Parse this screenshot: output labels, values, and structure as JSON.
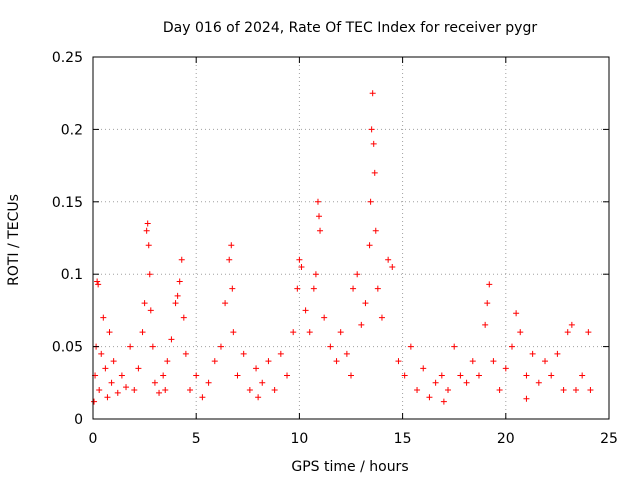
{
  "chart_data": {
    "type": "scatter",
    "title": "Day 016 of 2024, Rate Of TEC Index for receiver pygr",
    "xlabel": "GPS time / hours",
    "ylabel": "ROTI / TECUs",
    "xlim": [
      0,
      25
    ],
    "ylim": [
      0,
      0.25
    ],
    "xticks": [
      0,
      5,
      10,
      15,
      20,
      25
    ],
    "xtick_labels": [
      "0",
      "5",
      "10",
      "15",
      "20",
      "25"
    ],
    "yticks": [
      0,
      0.05,
      0.1,
      0.15,
      0.2,
      0.25
    ],
    "ytick_labels": [
      "0",
      "0.05",
      "0.1",
      "0.15",
      "0.2",
      "0.25"
    ],
    "grid": true,
    "marker": "+",
    "color": "#ff0000",
    "series": [
      {
        "name": "ROTI",
        "points": [
          [
            0.05,
            0.012
          ],
          [
            0.1,
            0.03
          ],
          [
            0.15,
            0.05
          ],
          [
            0.2,
            0.095
          ],
          [
            0.25,
            0.093
          ],
          [
            0.3,
            0.02
          ],
          [
            0.4,
            0.045
          ],
          [
            0.5,
            0.07
          ],
          [
            0.6,
            0.035
          ],
          [
            0.7,
            0.015
          ],
          [
            0.8,
            0.06
          ],
          [
            0.9,
            0.025
          ],
          [
            1.0,
            0.04
          ],
          [
            1.2,
            0.018
          ],
          [
            1.4,
            0.03
          ],
          [
            1.6,
            0.022
          ],
          [
            1.8,
            0.05
          ],
          [
            2.0,
            0.02
          ],
          [
            2.2,
            0.035
          ],
          [
            2.4,
            0.06
          ],
          [
            2.5,
            0.08
          ],
          [
            2.6,
            0.13
          ],
          [
            2.65,
            0.135
          ],
          [
            2.7,
            0.12
          ],
          [
            2.75,
            0.1
          ],
          [
            2.8,
            0.075
          ],
          [
            2.9,
            0.05
          ],
          [
            3.0,
            0.025
          ],
          [
            3.2,
            0.018
          ],
          [
            3.4,
            0.03
          ],
          [
            3.6,
            0.04
          ],
          [
            3.8,
            0.055
          ],
          [
            4.0,
            0.08
          ],
          [
            4.1,
            0.085
          ],
          [
            4.2,
            0.095
          ],
          [
            4.3,
            0.11
          ],
          [
            4.4,
            0.07
          ],
          [
            4.5,
            0.045
          ],
          [
            4.7,
            0.02
          ],
          [
            5.0,
            0.03
          ],
          [
            5.3,
            0.015
          ],
          [
            5.6,
            0.025
          ],
          [
            5.9,
            0.04
          ],
          [
            6.2,
            0.05
          ],
          [
            6.4,
            0.08
          ],
          [
            6.6,
            0.11
          ],
          [
            6.7,
            0.12
          ],
          [
            6.75,
            0.09
          ],
          [
            6.8,
            0.06
          ],
          [
            7.0,
            0.03
          ],
          [
            7.3,
            0.045
          ],
          [
            7.6,
            0.02
          ],
          [
            7.9,
            0.035
          ],
          [
            8.2,
            0.025
          ],
          [
            8.5,
            0.04
          ],
          [
            8.8,
            0.02
          ],
          [
            9.1,
            0.045
          ],
          [
            9.4,
            0.03
          ],
          [
            9.7,
            0.06
          ],
          [
            9.9,
            0.09
          ],
          [
            10.0,
            0.11
          ],
          [
            10.1,
            0.105
          ],
          [
            10.3,
            0.075
          ],
          [
            10.5,
            0.06
          ],
          [
            10.7,
            0.09
          ],
          [
            10.8,
            0.1
          ],
          [
            10.9,
            0.15
          ],
          [
            10.95,
            0.14
          ],
          [
            11.0,
            0.13
          ],
          [
            11.2,
            0.07
          ],
          [
            11.5,
            0.05
          ],
          [
            11.8,
            0.04
          ],
          [
            12.0,
            0.06
          ],
          [
            12.3,
            0.045
          ],
          [
            12.6,
            0.09
          ],
          [
            12.8,
            0.1
          ],
          [
            13.0,
            0.065
          ],
          [
            13.2,
            0.08
          ],
          [
            13.4,
            0.12
          ],
          [
            13.45,
            0.15
          ],
          [
            13.5,
            0.2
          ],
          [
            13.55,
            0.225
          ],
          [
            13.6,
            0.19
          ],
          [
            13.65,
            0.17
          ],
          [
            13.7,
            0.13
          ],
          [
            13.8,
            0.09
          ],
          [
            14.0,
            0.07
          ],
          [
            14.3,
            0.11
          ],
          [
            14.5,
            0.105
          ],
          [
            14.8,
            0.04
          ],
          [
            15.1,
            0.03
          ],
          [
            15.4,
            0.05
          ],
          [
            15.7,
            0.02
          ],
          [
            16.0,
            0.035
          ],
          [
            16.3,
            0.015
          ],
          [
            16.6,
            0.025
          ],
          [
            16.9,
            0.03
          ],
          [
            17.2,
            0.02
          ],
          [
            17.5,
            0.05
          ],
          [
            17.8,
            0.03
          ],
          [
            18.1,
            0.025
          ],
          [
            18.4,
            0.04
          ],
          [
            18.7,
            0.03
          ],
          [
            19.0,
            0.065
          ],
          [
            19.1,
            0.08
          ],
          [
            19.2,
            0.093
          ],
          [
            19.4,
            0.04
          ],
          [
            19.7,
            0.02
          ],
          [
            20.0,
            0.035
          ],
          [
            20.3,
            0.05
          ],
          [
            20.5,
            0.073
          ],
          [
            20.7,
            0.06
          ],
          [
            21.0,
            0.03
          ],
          [
            21.3,
            0.045
          ],
          [
            21.6,
            0.025
          ],
          [
            21.9,
            0.04
          ],
          [
            22.2,
            0.03
          ],
          [
            22.5,
            0.045
          ],
          [
            22.8,
            0.02
          ],
          [
            23.0,
            0.06
          ],
          [
            23.2,
            0.065
          ],
          [
            23.4,
            0.02
          ],
          [
            23.7,
            0.03
          ],
          [
            24.0,
            0.06
          ],
          [
            24.1,
            0.02
          ],
          [
            12.5,
            0.03
          ],
          [
            8.0,
            0.015
          ],
          [
            3.5,
            0.02
          ],
          [
            17.0,
            0.012
          ],
          [
            21.0,
            0.014
          ]
        ]
      }
    ]
  }
}
